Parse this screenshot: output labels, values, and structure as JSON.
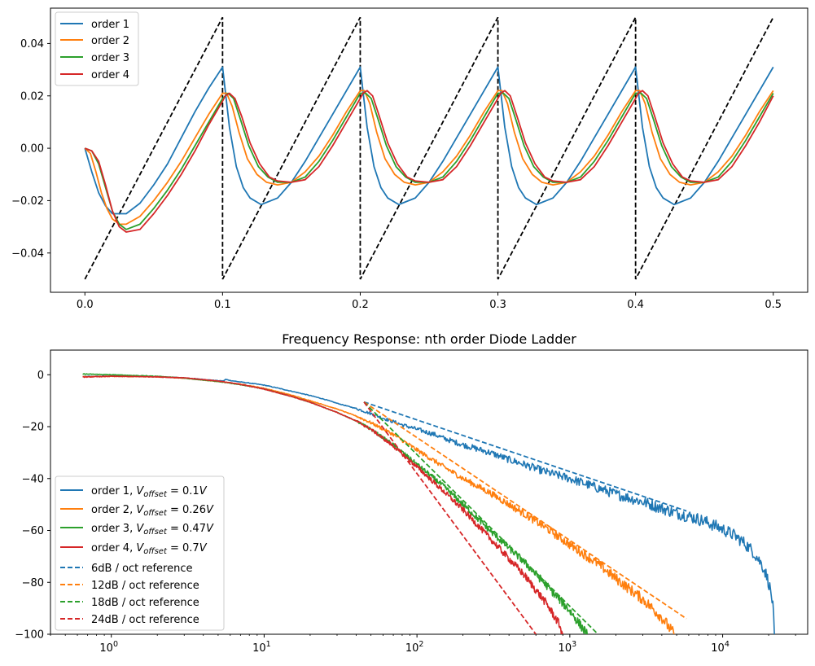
{
  "colors": {
    "order1": "#1f77b4",
    "order2": "#ff7f0e",
    "order3": "#2ca02c",
    "order4": "#d62728",
    "sawtooth": "#000000"
  },
  "chart_data": [
    {
      "type": "line",
      "title": "",
      "xlabel": "",
      "ylabel": "",
      "xlim": [
        -0.025,
        0.525
      ],
      "ylim": [
        -0.055,
        0.0535
      ],
      "x_ticks": [
        0.0,
        0.1,
        0.2,
        0.3,
        0.4,
        0.5
      ],
      "x_tick_labels": [
        "0.0",
        "0.1",
        "0.2",
        "0.3",
        "0.4",
        "0.5"
      ],
      "y_ticks": [
        -0.04,
        -0.02,
        0.0,
        0.02,
        0.04
      ],
      "y_tick_labels": [
        "−0.04",
        "−0.02",
        "0.00",
        "0.02",
        "0.04"
      ],
      "grid": false,
      "legend_position": "upper-left",
      "input_signal": {
        "style": "dashed",
        "shape": "sawtooth",
        "period": 0.1,
        "min": -0.05,
        "max": 0.05,
        "x_start": 0.0,
        "x_end": 0.5
      },
      "series": [
        {
          "name": "order 1",
          "x": [
            0,
            0.005,
            0.01,
            0.015,
            0.02,
            0.03,
            0.04,
            0.05,
            0.06,
            0.07,
            0.08,
            0.09,
            0.1,
            0.105,
            0.11,
            0.115,
            0.12,
            0.128,
            0.14,
            0.15,
            0.16,
            0.17,
            0.18,
            0.19,
            0.2,
            0.205,
            0.21,
            0.215,
            0.22,
            0.228,
            0.24,
            0.25,
            0.26,
            0.27,
            0.28,
            0.29,
            0.3,
            0.305,
            0.31,
            0.315,
            0.32,
            0.328,
            0.34,
            0.35,
            0.36,
            0.37,
            0.38,
            0.39,
            0.4,
            0.405,
            0.41,
            0.415,
            0.42,
            0.428,
            0.44,
            0.45,
            0.46,
            0.47,
            0.48,
            0.49,
            0.5
          ],
          "values": [
            0.0,
            -0.009,
            -0.017,
            -0.022,
            -0.025,
            -0.025,
            -0.021,
            -0.014,
            -0.006,
            0.004,
            0.014,
            0.023,
            0.031,
            0.008,
            -0.007,
            -0.015,
            -0.019,
            -0.0215,
            -0.019,
            -0.013,
            -0.005,
            0.004,
            0.013,
            0.022,
            0.031,
            0.008,
            -0.007,
            -0.015,
            -0.019,
            -0.0215,
            -0.019,
            -0.013,
            -0.005,
            0.004,
            0.013,
            0.022,
            0.031,
            0.008,
            -0.007,
            -0.015,
            -0.019,
            -0.0215,
            -0.019,
            -0.013,
            -0.005,
            0.004,
            0.013,
            0.022,
            0.031,
            0.008,
            -0.007,
            -0.015,
            -0.019,
            -0.0215,
            -0.019,
            -0.013,
            -0.005,
            0.004,
            0.013,
            0.022,
            0.031
          ]
        },
        {
          "name": "order 2",
          "x": [
            0,
            0.004,
            0.008,
            0.012,
            0.016,
            0.02,
            0.025,
            0.03,
            0.04,
            0.05,
            0.06,
            0.07,
            0.08,
            0.09,
            0.1,
            0.103,
            0.107,
            0.112,
            0.118,
            0.125,
            0.132,
            0.14,
            0.15,
            0.16,
            0.17,
            0.18,
            0.19,
            0.2,
            0.203,
            0.207,
            0.212,
            0.218,
            0.225,
            0.232,
            0.24,
            0.25,
            0.26,
            0.27,
            0.28,
            0.29,
            0.3,
            0.303,
            0.307,
            0.312,
            0.318,
            0.325,
            0.332,
            0.34,
            0.35,
            0.36,
            0.37,
            0.38,
            0.39,
            0.4,
            0.403,
            0.407,
            0.412,
            0.418,
            0.425,
            0.432,
            0.44,
            0.45,
            0.46,
            0.47,
            0.48,
            0.49,
            0.5
          ],
          "values": [
            0.0,
            -0.002,
            -0.009,
            -0.017,
            -0.023,
            -0.027,
            -0.029,
            -0.029,
            -0.026,
            -0.02,
            -0.013,
            -0.005,
            0.004,
            0.013,
            0.021,
            0.021,
            0.016,
            0.006,
            -0.004,
            -0.01,
            -0.013,
            -0.014,
            -0.013,
            -0.009,
            -0.003,
            0.005,
            0.014,
            0.022,
            0.022,
            0.017,
            0.006,
            -0.004,
            -0.01,
            -0.013,
            -0.014,
            -0.013,
            -0.009,
            -0.003,
            0.005,
            0.014,
            0.022,
            0.022,
            0.017,
            0.006,
            -0.004,
            -0.01,
            -0.013,
            -0.014,
            -0.013,
            -0.009,
            -0.003,
            0.005,
            0.014,
            0.022,
            0.022,
            0.017,
            0.006,
            -0.004,
            -0.01,
            -0.013,
            -0.014,
            -0.013,
            -0.009,
            -0.003,
            0.005,
            0.014,
            0.022
          ]
        },
        {
          "name": "order 3",
          "x": [
            0,
            0.005,
            0.01,
            0.015,
            0.02,
            0.025,
            0.03,
            0.04,
            0.05,
            0.06,
            0.07,
            0.08,
            0.09,
            0.1,
            0.104,
            0.108,
            0.113,
            0.119,
            0.126,
            0.133,
            0.14,
            0.15,
            0.16,
            0.17,
            0.18,
            0.19,
            0.2,
            0.204,
            0.208,
            0.213,
            0.219,
            0.226,
            0.233,
            0.24,
            0.25,
            0.26,
            0.27,
            0.28,
            0.29,
            0.3,
            0.304,
            0.308,
            0.313,
            0.319,
            0.326,
            0.333,
            0.34,
            0.35,
            0.36,
            0.37,
            0.38,
            0.39,
            0.4,
            0.404,
            0.408,
            0.413,
            0.419,
            0.426,
            0.433,
            0.44,
            0.45,
            0.46,
            0.47,
            0.48,
            0.49,
            0.5
          ],
          "values": [
            0.0,
            -0.001,
            -0.006,
            -0.015,
            -0.024,
            -0.029,
            -0.031,
            -0.029,
            -0.023,
            -0.016,
            -0.008,
            0.001,
            0.01,
            0.019,
            0.021,
            0.019,
            0.011,
            0.001,
            -0.007,
            -0.011,
            -0.013,
            -0.013,
            -0.011,
            -0.005,
            0.003,
            0.012,
            0.021,
            0.021,
            0.019,
            0.011,
            0.001,
            -0.007,
            -0.011,
            -0.013,
            -0.013,
            -0.011,
            -0.005,
            0.003,
            0.012,
            0.021,
            0.021,
            0.019,
            0.011,
            0.001,
            -0.007,
            -0.011,
            -0.013,
            -0.013,
            -0.011,
            -0.005,
            0.003,
            0.012,
            0.021,
            0.021,
            0.019,
            0.011,
            0.001,
            -0.007,
            -0.011,
            -0.013,
            -0.013,
            -0.011,
            -0.005,
            0.003,
            0.012,
            0.021
          ]
        },
        {
          "name": "order 4",
          "x": [
            0,
            0.005,
            0.01,
            0.015,
            0.02,
            0.025,
            0.03,
            0.04,
            0.05,
            0.06,
            0.07,
            0.08,
            0.09,
            0.1,
            0.102,
            0.105,
            0.109,
            0.114,
            0.12,
            0.127,
            0.134,
            0.14,
            0.15,
            0.16,
            0.17,
            0.18,
            0.19,
            0.2,
            0.202,
            0.205,
            0.209,
            0.214,
            0.22,
            0.227,
            0.234,
            0.24,
            0.25,
            0.26,
            0.27,
            0.28,
            0.29,
            0.3,
            0.302,
            0.305,
            0.309,
            0.314,
            0.32,
            0.327,
            0.334,
            0.34,
            0.35,
            0.36,
            0.37,
            0.38,
            0.39,
            0.4,
            0.402,
            0.405,
            0.409,
            0.414,
            0.42,
            0.427,
            0.434,
            0.44,
            0.45,
            0.46,
            0.47,
            0.48,
            0.49,
            0.5
          ],
          "values": [
            0.0,
            -0.001,
            -0.005,
            -0.014,
            -0.024,
            -0.03,
            -0.032,
            -0.031,
            -0.025,
            -0.018,
            -0.01,
            -0.001,
            0.009,
            0.018,
            0.02,
            0.021,
            0.019,
            0.012,
            0.002,
            -0.006,
            -0.011,
            -0.0125,
            -0.013,
            -0.012,
            -0.007,
            0.001,
            0.01,
            0.019,
            0.021,
            0.022,
            0.02,
            0.012,
            0.002,
            -0.006,
            -0.011,
            -0.0125,
            -0.013,
            -0.012,
            -0.007,
            0.001,
            0.01,
            0.019,
            0.021,
            0.022,
            0.02,
            0.012,
            0.002,
            -0.006,
            -0.011,
            -0.0125,
            -0.013,
            -0.012,
            -0.007,
            0.001,
            0.01,
            0.019,
            0.021,
            0.022,
            0.02,
            0.012,
            0.002,
            -0.006,
            -0.011,
            -0.0125,
            -0.013,
            -0.012,
            -0.007,
            0.001,
            0.01,
            0.02
          ]
        }
      ]
    },
    {
      "type": "line",
      "title": "Frequency Response: nth order Diode Ladder",
      "xlabel": "",
      "ylabel": "",
      "x_scale": "log",
      "xlim": [
        0.4,
        36000
      ],
      "ylim": [
        -100,
        9.5
      ],
      "x_ticks": [
        1,
        10,
        100,
        1000,
        10000
      ],
      "x_tick_labels": [
        "10^0",
        "10^1",
        "10^2",
        "10^3",
        "10^4"
      ],
      "y_ticks": [
        -100,
        -80,
        -60,
        -40,
        -20,
        0
      ],
      "y_tick_labels": [
        "−100",
        "−80",
        "−60",
        "−40",
        "−20",
        "0"
      ],
      "grid": false,
      "legend_position": "lower-left",
      "series": [
        {
          "name": "order 1, V_offset = 0.1V",
          "legend_main": "order 1, ",
          "legend_sub": "offset",
          "legend_tail": " = 0.1",
          "style": "solid",
          "noisy": true,
          "x": [
            0.65,
            1,
            2,
            3,
            4,
            5,
            5.4,
            5.6,
            6,
            7,
            8,
            10,
            12,
            15,
            20,
            25,
            30,
            40,
            50,
            60,
            70,
            80,
            100,
            130,
            150,
            200,
            300,
            400,
            500,
            700,
            1000,
            1500,
            2000,
            3000,
            4000,
            5000,
            6000,
            7000,
            8000,
            10000,
            12000,
            14000,
            16000,
            18000,
            19000,
            20000,
            21000,
            21500,
            21800
          ],
          "values": [
            -0.7,
            -0.5,
            -0.8,
            -1.2,
            -1.8,
            -2.3,
            -2.4,
            -1.8,
            -2.2,
            -2.8,
            -3.2,
            -4.0,
            -5.0,
            -6.3,
            -8.0,
            -9.5,
            -11.0,
            -13.0,
            -15.0,
            -16.7,
            -18.1,
            -19.3,
            -21.0,
            -23.0,
            -24.5,
            -27.0,
            -30.0,
            -32.7,
            -34.5,
            -37.5,
            -40.0,
            -43.5,
            -46.0,
            -49.0,
            -51.5,
            -53.3,
            -54.5,
            -55.7,
            -57.0,
            -59.5,
            -62.0,
            -65.0,
            -68.5,
            -73.0,
            -76.0,
            -80.0,
            -86.0,
            -92.0,
            -100.0
          ]
        },
        {
          "name": "order 2, V_offset = 0.26V",
          "legend_main": "order 2, ",
          "legend_sub": "offset",
          "legend_tail": " = 0.26",
          "style": "solid",
          "noisy": true,
          "x": [
            0.65,
            1,
            2,
            3,
            5,
            7,
            10,
            15,
            20,
            30,
            40,
            50,
            70,
            100,
            150,
            200,
            300,
            500,
            700,
            1000,
            1500,
            2000,
            3000,
            4000,
            4800
          ],
          "values": [
            -0.8,
            -0.6,
            -0.8,
            -1.3,
            -2.6,
            -3.6,
            -5.2,
            -7.8,
            -10.0,
            -13.2,
            -15.9,
            -18.5,
            -23.0,
            -29.0,
            -35.5,
            -40.0,
            -45.5,
            -53.5,
            -59.0,
            -65.5,
            -72.5,
            -78.5,
            -86.5,
            -93.5,
            -100.0
          ]
        },
        {
          "name": "order 3, V_offset = 0.47V",
          "legend_main": "order 3, ",
          "legend_sub": "offset",
          "legend_tail": " = 0.47",
          "style": "solid",
          "noisy": true,
          "x": [
            0.65,
            1,
            2,
            3,
            5,
            7,
            10,
            15,
            20,
            30,
            40,
            50,
            70,
            100,
            150,
            200,
            300,
            500,
            700,
            1000,
            1300
          ],
          "values": [
            0.3,
            0.0,
            -0.6,
            -1.3,
            -2.6,
            -3.8,
            -5.5,
            -8.3,
            -10.6,
            -14.5,
            -17.8,
            -21.0,
            -27.0,
            -34.5,
            -43.0,
            -50.0,
            -60.0,
            -72.0,
            -81.0,
            -91.0,
            -100.0
          ]
        },
        {
          "name": "order 4, V_offset = 0.7V",
          "legend_main": "order 4, ",
          "legend_sub": "offset",
          "legend_tail": " = 0.7",
          "style": "solid",
          "noisy": true,
          "x": [
            0.65,
            1,
            2,
            3,
            5,
            7,
            10,
            15,
            20,
            30,
            40,
            50,
            70,
            100,
            150,
            200,
            300,
            500,
            700,
            850,
            900
          ],
          "values": [
            -0.9,
            -0.6,
            -0.8,
            -1.2,
            -2.4,
            -3.7,
            -5.5,
            -8.3,
            -10.6,
            -14.5,
            -17.8,
            -21.0,
            -27.5,
            -35.5,
            -45.0,
            -52.0,
            -63.0,
            -77.0,
            -88.0,
            -96.0,
            -100.0
          ]
        },
        {
          "name": "6dB / oct reference",
          "style": "dashed",
          "x": [
            45,
            5800
          ],
          "values": [
            -10.5,
            -52.5
          ]
        },
        {
          "name": "12dB / oct reference",
          "style": "dashed",
          "x": [
            45,
            5800
          ],
          "values": [
            -10.5,
            -94.0
          ]
        },
        {
          "name": "18dB / oct reference",
          "style": "dashed",
          "x": [
            45,
            1530
          ],
          "values": [
            -10.5,
            -100.0
          ]
        },
        {
          "name": "24dB / oct reference",
          "style": "dashed",
          "x": [
            45,
            600
          ],
          "values": [
            -10.5,
            -100.0
          ]
        }
      ]
    }
  ]
}
